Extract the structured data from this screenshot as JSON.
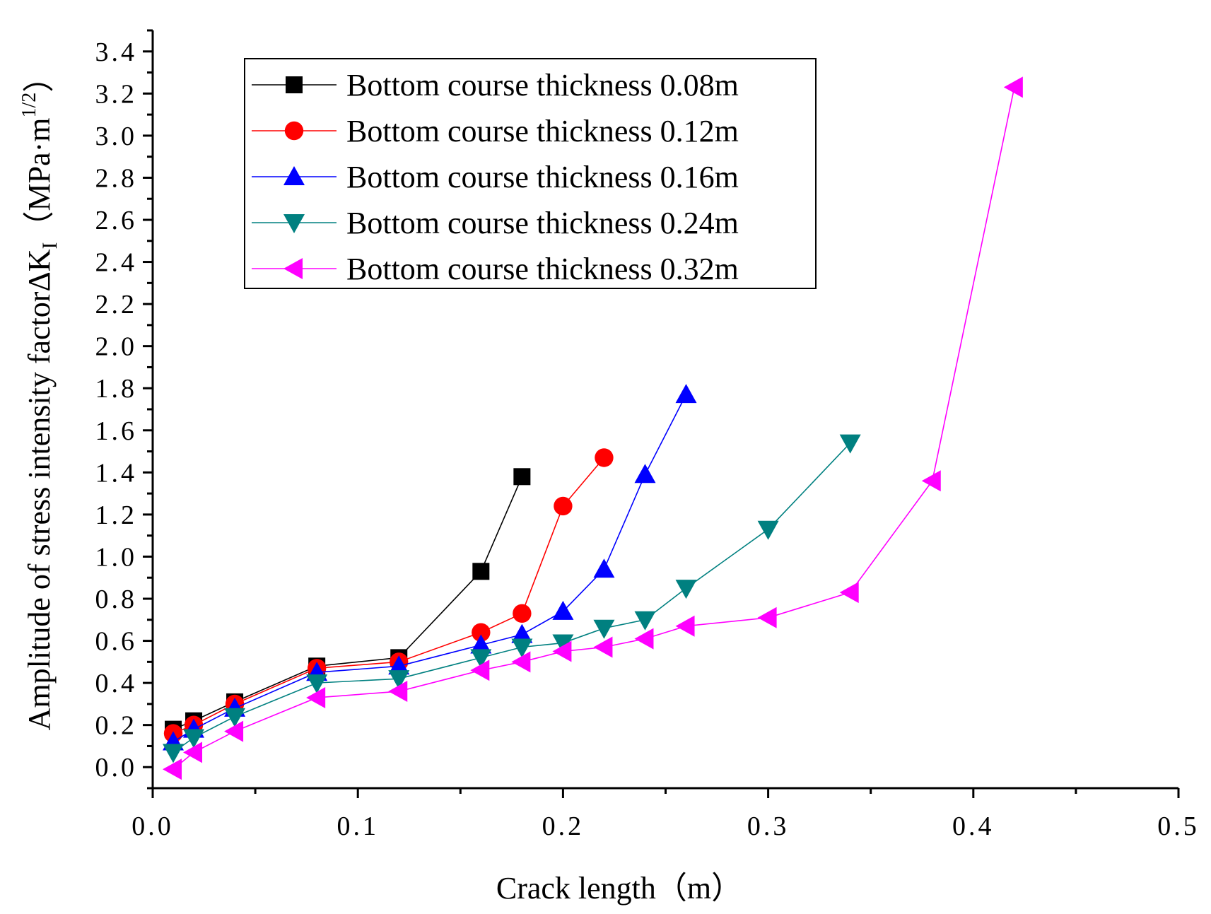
{
  "chart_data": {
    "type": "line",
    "title": "",
    "xlabel": "Crack length（m）",
    "ylabel": "Amplitude of stress intensity factorΔK",
    "ylabel_subscript": "I",
    "ylabel_unit_open": "（MPa·m",
    "ylabel_unit_sup": "1/2",
    "ylabel_unit_close": "）",
    "xlim": [
      0.0,
      0.5
    ],
    "ylim": [
      -0.1,
      3.5
    ],
    "x_ticks": [
      0.0,
      0.1,
      0.2,
      0.3,
      0.4,
      0.5
    ],
    "x_tick_labels": [
      "0.0",
      "0.1",
      "0.2",
      "0.3",
      "0.4",
      "0.5"
    ],
    "y_ticks": [
      0.0,
      0.2,
      0.4,
      0.6,
      0.8,
      1.0,
      1.2,
      1.4,
      1.6,
      1.8,
      2.0,
      2.2,
      2.4,
      2.6,
      2.8,
      3.0,
      3.2,
      3.4
    ],
    "y_tick_labels": [
      "0.0",
      "0.2",
      "0.4",
      "0.6",
      "0.8",
      "1.0",
      "1.2",
      "1.4",
      "1.6",
      "1.8",
      "2.0",
      "2.2",
      "2.4",
      "2.6",
      "2.8",
      "3.0",
      "3.2",
      "3.4"
    ],
    "grid": false,
    "legend_position": "top-left",
    "series": [
      {
        "name": "Bottom course thickness 0.08m",
        "color": "#000000",
        "marker": "square",
        "x": [
          0.01,
          0.02,
          0.04,
          0.08,
          0.12,
          0.16,
          0.18
        ],
        "y": [
          0.18,
          0.22,
          0.31,
          0.48,
          0.52,
          0.93,
          1.38
        ]
      },
      {
        "name": "Bottom course thickness 0.12m",
        "color": "#ff0000",
        "marker": "circle",
        "x": [
          0.01,
          0.02,
          0.04,
          0.08,
          0.12,
          0.16,
          0.18,
          0.2,
          0.22
        ],
        "y": [
          0.16,
          0.2,
          0.3,
          0.47,
          0.5,
          0.64,
          0.73,
          1.24,
          1.47
        ]
      },
      {
        "name": "Bottom course thickness 0.16m",
        "color": "#0000ff",
        "marker": "triangle-up",
        "x": [
          0.01,
          0.02,
          0.04,
          0.08,
          0.12,
          0.16,
          0.18,
          0.2,
          0.22,
          0.24,
          0.26
        ],
        "y": [
          0.12,
          0.18,
          0.28,
          0.45,
          0.48,
          0.58,
          0.63,
          0.74,
          0.94,
          1.39,
          1.77
        ]
      },
      {
        "name": "Bottom course thickness 0.24m",
        "color": "#008080",
        "marker": "triangle-down",
        "x": [
          0.01,
          0.02,
          0.04,
          0.08,
          0.12,
          0.16,
          0.18,
          0.2,
          0.22,
          0.24,
          0.26,
          0.3,
          0.34
        ],
        "y": [
          0.07,
          0.14,
          0.24,
          0.4,
          0.42,
          0.52,
          0.57,
          0.59,
          0.66,
          0.7,
          0.85,
          1.13,
          1.54
        ]
      },
      {
        "name": "Bottom course thickness 0.32m",
        "color": "#ff00ff",
        "marker": "triangle-left",
        "x": [
          0.01,
          0.02,
          0.04,
          0.08,
          0.12,
          0.16,
          0.18,
          0.2,
          0.22,
          0.24,
          0.26,
          0.3,
          0.34,
          0.38,
          0.42
        ],
        "y": [
          -0.01,
          0.07,
          0.17,
          0.33,
          0.36,
          0.46,
          0.5,
          0.55,
          0.57,
          0.61,
          0.67,
          0.71,
          0.83,
          1.36,
          3.23
        ]
      }
    ]
  }
}
